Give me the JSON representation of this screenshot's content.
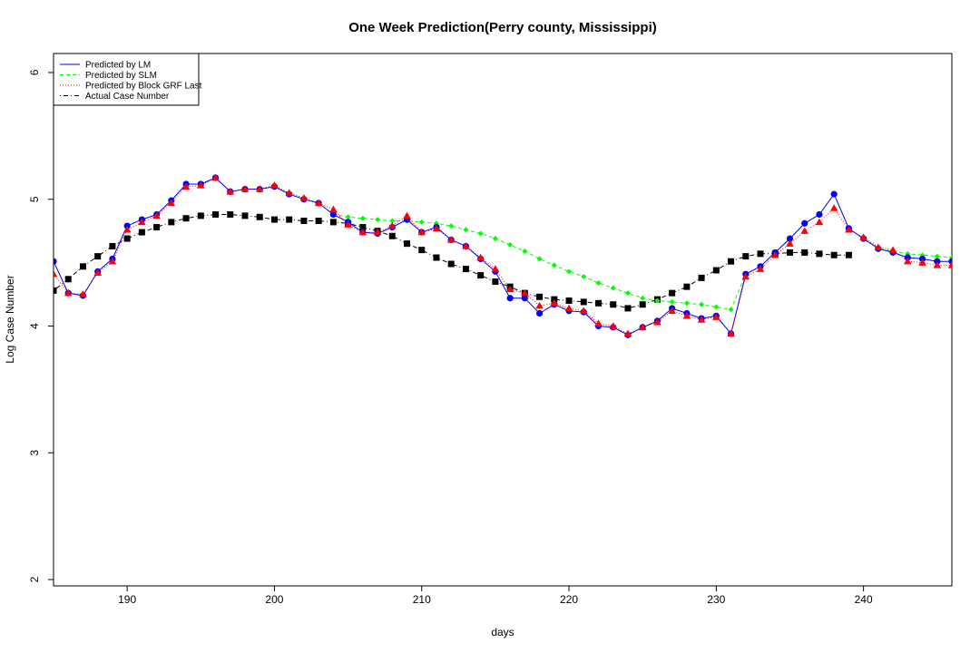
{
  "chart_data": {
    "type": "line",
    "title": "One Week Prediction(Perry county, Mississippi)",
    "xlabel": "days",
    "ylabel": "Log Case Number",
    "xlim": [
      185,
      246
    ],
    "ylim": [
      1.95,
      6.15
    ],
    "xticks": [
      190,
      200,
      210,
      220,
      230,
      240
    ],
    "yticks": [
      2,
      3,
      4,
      5,
      6
    ],
    "legend_position": "top-left",
    "grid": false,
    "series": [
      {
        "name": "Predicted by LM",
        "color": "#0000ff",
        "line": "solid",
        "marker": "circle",
        "x": [
          185,
          186,
          187,
          188,
          189,
          190,
          191,
          192,
          193,
          194,
          195,
          196,
          197,
          198,
          199,
          200,
          201,
          202,
          203,
          204,
          205,
          206,
          207,
          208,
          209,
          210,
          211,
          212,
          213,
          214,
          215,
          216,
          217,
          218,
          219,
          220,
          221,
          222,
          223,
          224,
          225,
          226,
          227,
          228,
          229,
          230,
          231,
          232,
          233,
          234,
          235,
          236,
          237,
          238,
          239,
          240,
          241,
          242,
          243,
          244,
          245,
          246
        ],
        "values": [
          4.51,
          4.26,
          4.24,
          4.43,
          4.53,
          4.79,
          4.84,
          4.88,
          4.99,
          5.12,
          5.12,
          5.17,
          5.06,
          5.08,
          5.08,
          5.1,
          5.04,
          5.0,
          4.97,
          4.88,
          4.82,
          4.74,
          4.73,
          4.78,
          4.84,
          4.74,
          4.78,
          4.68,
          4.63,
          4.53,
          4.43,
          4.22,
          4.22,
          4.1,
          4.17,
          4.12,
          4.11,
          4.0,
          3.99,
          3.93,
          3.99,
          4.04,
          4.14,
          4.1,
          4.06,
          4.08,
          3.94,
          4.41,
          4.47,
          4.58,
          4.69,
          4.81,
          4.88,
          5.04,
          4.77,
          4.69,
          4.61,
          4.58,
          4.54,
          4.53,
          4.51,
          4.51
        ]
      },
      {
        "name": "Predicted by SLM",
        "color": "#00ff00",
        "line": "dashed",
        "marker": "diamond",
        "x": [
          185,
          186,
          187,
          188,
          189,
          190,
          191,
          192,
          193,
          194,
          195,
          196,
          197,
          198,
          199,
          200,
          201,
          202,
          203,
          204,
          205,
          206,
          207,
          208,
          209,
          210,
          211,
          212,
          213,
          214,
          215,
          216,
          217,
          218,
          219,
          220,
          221,
          222,
          223,
          224,
          225,
          226,
          227,
          228,
          229,
          230,
          231,
          232,
          233,
          234,
          235,
          236,
          237,
          238,
          239,
          240,
          241,
          242,
          243,
          244,
          245,
          246
        ],
        "values": [
          4.51,
          4.26,
          4.24,
          4.43,
          4.53,
          4.79,
          4.84,
          4.88,
          4.99,
          5.12,
          5.12,
          5.17,
          5.06,
          5.08,
          5.08,
          5.1,
          5.04,
          5.0,
          4.97,
          4.88,
          4.86,
          4.85,
          4.84,
          4.83,
          4.83,
          4.82,
          4.81,
          4.79,
          4.76,
          4.73,
          4.69,
          4.64,
          4.59,
          4.53,
          4.48,
          4.43,
          4.39,
          4.34,
          4.3,
          4.26,
          4.22,
          4.2,
          4.19,
          4.18,
          4.17,
          4.15,
          4.13,
          4.41,
          4.47,
          4.58,
          4.69,
          4.81,
          4.88,
          5.04,
          4.77,
          4.69,
          4.61,
          4.59,
          4.57,
          4.56,
          4.55,
          4.54
        ]
      },
      {
        "name": "Predicted by Block GRF Last",
        "color": "#ff0000",
        "line": "dotted",
        "marker": "triangle",
        "x": [
          185,
          186,
          187,
          188,
          189,
          190,
          191,
          192,
          193,
          194,
          195,
          196,
          197,
          198,
          199,
          200,
          201,
          202,
          203,
          204,
          205,
          206,
          207,
          208,
          209,
          210,
          211,
          212,
          213,
          214,
          215,
          216,
          217,
          218,
          219,
          220,
          221,
          222,
          223,
          224,
          225,
          226,
          227,
          228,
          229,
          230,
          231,
          232,
          233,
          234,
          235,
          236,
          237,
          238,
          239,
          240,
          241,
          242,
          243,
          244,
          245,
          246
        ],
        "values": [
          4.41,
          4.26,
          4.25,
          4.42,
          4.51,
          4.76,
          4.82,
          4.87,
          4.97,
          5.1,
          5.11,
          5.17,
          5.06,
          5.08,
          5.08,
          5.11,
          5.05,
          5.01,
          4.97,
          4.92,
          4.8,
          4.74,
          4.74,
          4.79,
          4.87,
          4.74,
          4.77,
          4.68,
          4.63,
          4.54,
          4.45,
          4.29,
          4.26,
          4.16,
          4.18,
          4.14,
          4.12,
          4.02,
          4.0,
          3.94,
          3.99,
          4.03,
          4.12,
          4.08,
          4.05,
          4.07,
          3.94,
          4.39,
          4.45,
          4.56,
          4.65,
          4.75,
          4.82,
          4.93,
          4.76,
          4.7,
          4.62,
          4.6,
          4.51,
          4.5,
          4.48,
          4.48
        ]
      },
      {
        "name": "Actual Case Number",
        "color": "#000000",
        "line": "dotdash",
        "marker": "square",
        "x": [
          185,
          186,
          187,
          188,
          189,
          190,
          191,
          192,
          193,
          194,
          195,
          196,
          197,
          198,
          199,
          200,
          201,
          202,
          203,
          204,
          205,
          206,
          207,
          208,
          209,
          210,
          211,
          212,
          213,
          214,
          215,
          216,
          217,
          218,
          219,
          220,
          221,
          222,
          223,
          224,
          225,
          226,
          227,
          228,
          229,
          230,
          231,
          232,
          233,
          234,
          235,
          236,
          237,
          238,
          239
        ],
        "values": [
          4.28,
          4.37,
          4.47,
          4.55,
          4.63,
          4.69,
          4.74,
          4.78,
          4.82,
          4.85,
          4.87,
          4.88,
          4.88,
          4.87,
          4.86,
          4.84,
          4.84,
          4.83,
          4.83,
          4.82,
          4.81,
          4.78,
          4.75,
          4.71,
          4.65,
          4.6,
          4.54,
          4.49,
          4.45,
          4.4,
          4.35,
          4.31,
          4.26,
          4.23,
          4.21,
          4.2,
          4.19,
          4.18,
          4.17,
          4.14,
          4.17,
          4.21,
          4.26,
          4.31,
          4.38,
          4.44,
          4.51,
          4.55,
          4.57,
          4.57,
          4.58,
          4.58,
          4.57,
          4.56,
          4.56
        ]
      }
    ]
  }
}
